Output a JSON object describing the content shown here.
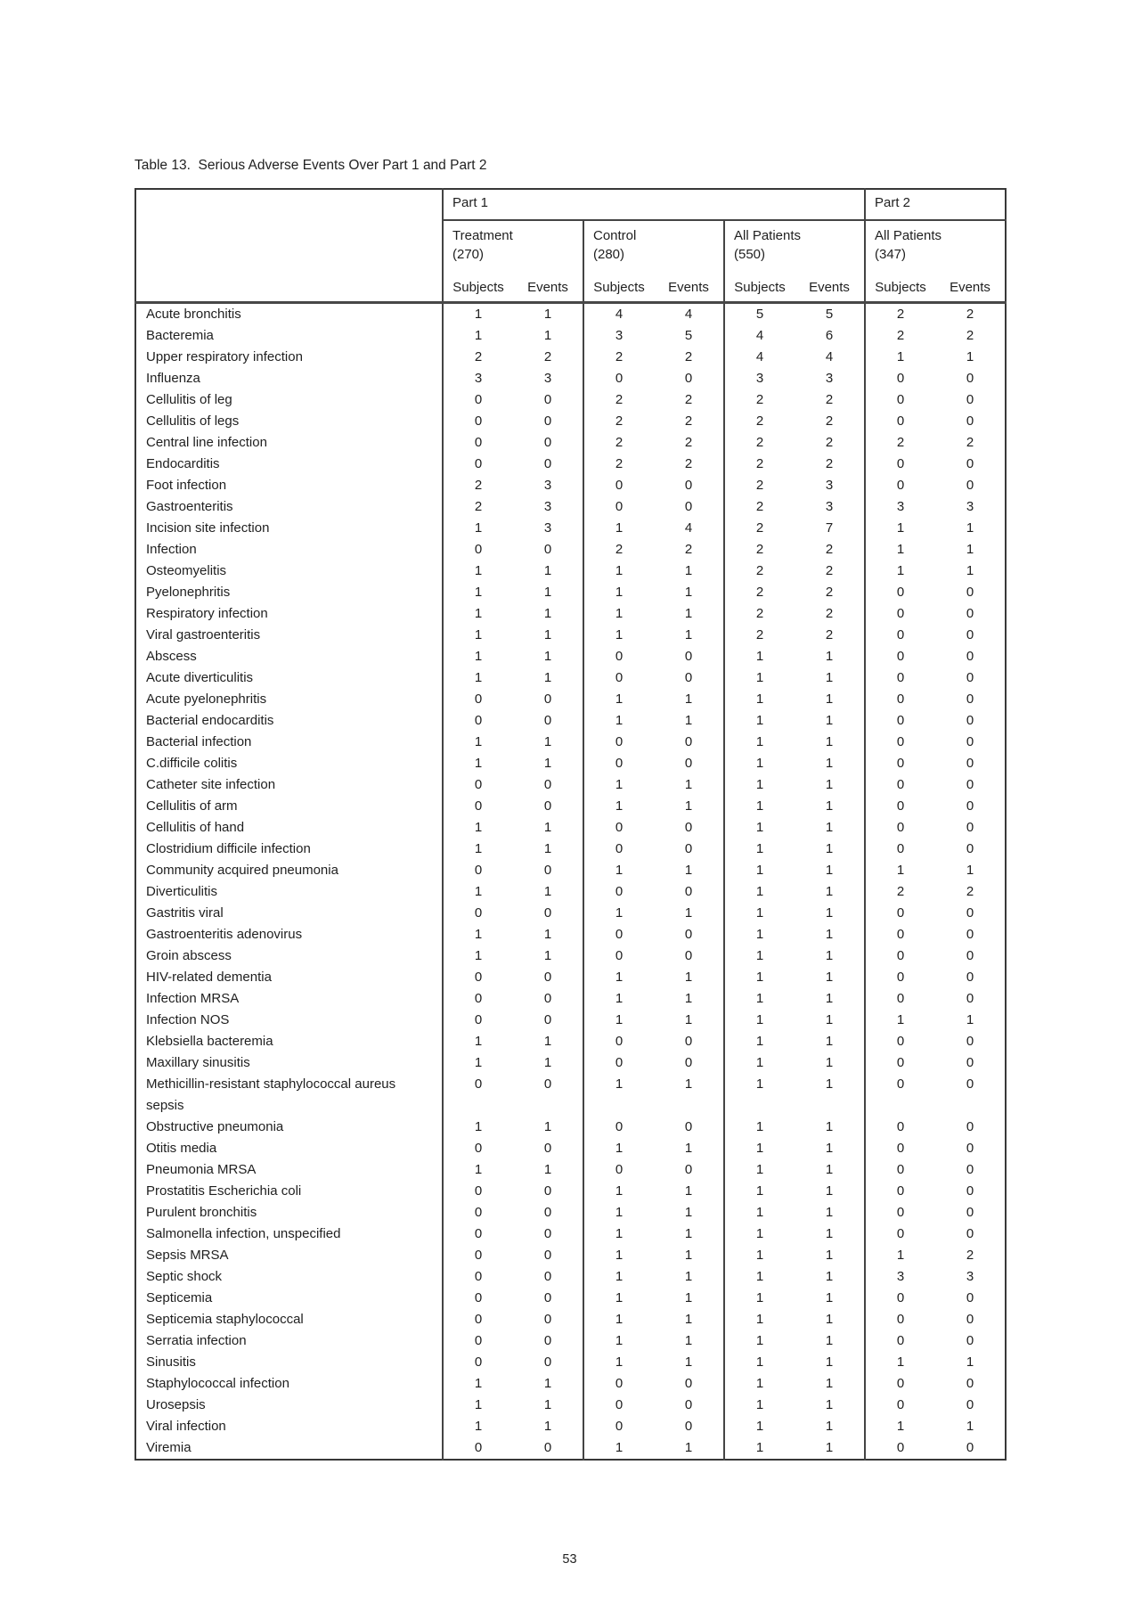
{
  "title": "Table 13.  Serious Adverse Events Over Part 1 and Part 2",
  "page": {
    "number": "53"
  },
  "table": {
    "part1_label": "Part 1",
    "part2_label": "Part 2",
    "groups": [
      {
        "label": "Treatment",
        "count": "(270)"
      },
      {
        "label": "Control",
        "count": "(280)"
      },
      {
        "label": "All Patients",
        "count": "(550)"
      },
      {
        "label": "All Patients",
        "count": "(347)"
      }
    ],
    "subheaders": [
      "Subjects",
      "Events"
    ],
    "rows": [
      {
        "label": "Acute bronchitis",
        "values": [
          1,
          1,
          4,
          4,
          5,
          5,
          2,
          2
        ]
      },
      {
        "label": "Bacteremia",
        "values": [
          1,
          1,
          3,
          5,
          4,
          6,
          2,
          2
        ]
      },
      {
        "label": "Upper respiratory infection",
        "values": [
          2,
          2,
          2,
          2,
          4,
          4,
          1,
          1
        ]
      },
      {
        "label": "Influenza",
        "values": [
          3,
          3,
          0,
          0,
          3,
          3,
          0,
          0
        ]
      },
      {
        "label": "Cellulitis of leg",
        "values": [
          0,
          0,
          2,
          2,
          2,
          2,
          0,
          0
        ]
      },
      {
        "label": "Cellulitis of legs",
        "values": [
          0,
          0,
          2,
          2,
          2,
          2,
          0,
          0
        ]
      },
      {
        "label": "Central line infection",
        "values": [
          0,
          0,
          2,
          2,
          2,
          2,
          2,
          2
        ]
      },
      {
        "label": "Endocarditis",
        "values": [
          0,
          0,
          2,
          2,
          2,
          2,
          0,
          0
        ]
      },
      {
        "label": "Foot infection",
        "values": [
          2,
          3,
          0,
          0,
          2,
          3,
          0,
          0
        ]
      },
      {
        "label": "Gastroenteritis",
        "values": [
          2,
          3,
          0,
          0,
          2,
          3,
          3,
          3
        ]
      },
      {
        "label": "Incision site infection",
        "values": [
          1,
          3,
          1,
          4,
          2,
          7,
          1,
          1
        ]
      },
      {
        "label": "Infection",
        "values": [
          0,
          0,
          2,
          2,
          2,
          2,
          1,
          1
        ]
      },
      {
        "label": "Osteomyelitis",
        "values": [
          1,
          1,
          1,
          1,
          2,
          2,
          1,
          1
        ]
      },
      {
        "label": "Pyelonephritis",
        "values": [
          1,
          1,
          1,
          1,
          2,
          2,
          0,
          0
        ]
      },
      {
        "label": "Respiratory infection",
        "values": [
          1,
          1,
          1,
          1,
          2,
          2,
          0,
          0
        ]
      },
      {
        "label": "Viral gastroenteritis",
        "values": [
          1,
          1,
          1,
          1,
          2,
          2,
          0,
          0
        ]
      },
      {
        "label": "Abscess",
        "values": [
          1,
          1,
          0,
          0,
          1,
          1,
          0,
          0
        ]
      },
      {
        "label": "Acute diverticulitis",
        "values": [
          1,
          1,
          0,
          0,
          1,
          1,
          0,
          0
        ]
      },
      {
        "label": "Acute pyelonephritis",
        "values": [
          0,
          0,
          1,
          1,
          1,
          1,
          0,
          0
        ]
      },
      {
        "label": "Bacterial endocarditis",
        "values": [
          0,
          0,
          1,
          1,
          1,
          1,
          0,
          0
        ]
      },
      {
        "label": "Bacterial infection",
        "values": [
          1,
          1,
          0,
          0,
          1,
          1,
          0,
          0
        ]
      },
      {
        "label": "C.difficile colitis",
        "values": [
          1,
          1,
          0,
          0,
          1,
          1,
          0,
          0
        ]
      },
      {
        "label": "Catheter site infection",
        "values": [
          0,
          0,
          1,
          1,
          1,
          1,
          0,
          0
        ]
      },
      {
        "label": "Cellulitis of arm",
        "values": [
          0,
          0,
          1,
          1,
          1,
          1,
          0,
          0
        ]
      },
      {
        "label": "Cellulitis of hand",
        "values": [
          1,
          1,
          0,
          0,
          1,
          1,
          0,
          0
        ]
      },
      {
        "label": "Clostridium difficile infection",
        "values": [
          1,
          1,
          0,
          0,
          1,
          1,
          0,
          0
        ]
      },
      {
        "label": "Community acquired pneumonia",
        "values": [
          0,
          0,
          1,
          1,
          1,
          1,
          1,
          1
        ]
      },
      {
        "label": "Diverticulitis",
        "values": [
          1,
          1,
          0,
          0,
          1,
          1,
          2,
          2
        ]
      },
      {
        "label": "Gastritis viral",
        "values": [
          0,
          0,
          1,
          1,
          1,
          1,
          0,
          0
        ]
      },
      {
        "label": "Gastroenteritis adenovirus",
        "values": [
          1,
          1,
          0,
          0,
          1,
          1,
          0,
          0
        ]
      },
      {
        "label": "Groin abscess",
        "values": [
          1,
          1,
          0,
          0,
          1,
          1,
          0,
          0
        ]
      },
      {
        "label": "HIV-related dementia",
        "values": [
          0,
          0,
          1,
          1,
          1,
          1,
          0,
          0
        ]
      },
      {
        "label": "Infection MRSA",
        "values": [
          0,
          0,
          1,
          1,
          1,
          1,
          0,
          0
        ]
      },
      {
        "label": "Infection NOS",
        "values": [
          0,
          0,
          1,
          1,
          1,
          1,
          1,
          1
        ]
      },
      {
        "label": "Klebsiella bacteremia",
        "values": [
          1,
          1,
          0,
          0,
          1,
          1,
          0,
          0
        ]
      },
      {
        "label": "Maxillary sinusitis",
        "values": [
          1,
          1,
          0,
          0,
          1,
          1,
          0,
          0
        ]
      },
      {
        "label": "Methicillin-resistant staphylococcal aureus sepsis",
        "values": [
          0,
          0,
          1,
          1,
          1,
          1,
          0,
          0
        ]
      },
      {
        "label": "Obstructive pneumonia",
        "values": [
          1,
          1,
          0,
          0,
          1,
          1,
          0,
          0
        ]
      },
      {
        "label": "Otitis media",
        "values": [
          0,
          0,
          1,
          1,
          1,
          1,
          0,
          0
        ]
      },
      {
        "label": "Pneumonia MRSA",
        "values": [
          1,
          1,
          0,
          0,
          1,
          1,
          0,
          0
        ]
      },
      {
        "label": "Prostatitis Escherichia coli",
        "values": [
          0,
          0,
          1,
          1,
          1,
          1,
          0,
          0
        ]
      },
      {
        "label": "Purulent bronchitis",
        "values": [
          0,
          0,
          1,
          1,
          1,
          1,
          0,
          0
        ]
      },
      {
        "label": "Salmonella infection, unspecified",
        "values": [
          0,
          0,
          1,
          1,
          1,
          1,
          0,
          0
        ]
      },
      {
        "label": "Sepsis MRSA",
        "values": [
          0,
          0,
          1,
          1,
          1,
          1,
          1,
          2
        ]
      },
      {
        "label": "Septic shock",
        "values": [
          0,
          0,
          1,
          1,
          1,
          1,
          3,
          3
        ]
      },
      {
        "label": "Septicemia",
        "values": [
          0,
          0,
          1,
          1,
          1,
          1,
          0,
          0
        ]
      },
      {
        "label": "Septicemia staphylococcal",
        "values": [
          0,
          0,
          1,
          1,
          1,
          1,
          0,
          0
        ]
      },
      {
        "label": "Serratia infection",
        "values": [
          0,
          0,
          1,
          1,
          1,
          1,
          0,
          0
        ]
      },
      {
        "label": "Sinusitis",
        "values": [
          0,
          0,
          1,
          1,
          1,
          1,
          1,
          1
        ]
      },
      {
        "label": "Staphylococcal infection",
        "values": [
          1,
          1,
          0,
          0,
          1,
          1,
          0,
          0
        ]
      },
      {
        "label": "Urosepsis",
        "values": [
          1,
          1,
          0,
          0,
          1,
          1,
          0,
          0
        ]
      },
      {
        "label": "Viral infection",
        "values": [
          1,
          1,
          0,
          0,
          1,
          1,
          1,
          1
        ]
      },
      {
        "label": "Viremia",
        "values": [
          0,
          0,
          1,
          1,
          1,
          1,
          0,
          0
        ]
      }
    ]
  }
}
